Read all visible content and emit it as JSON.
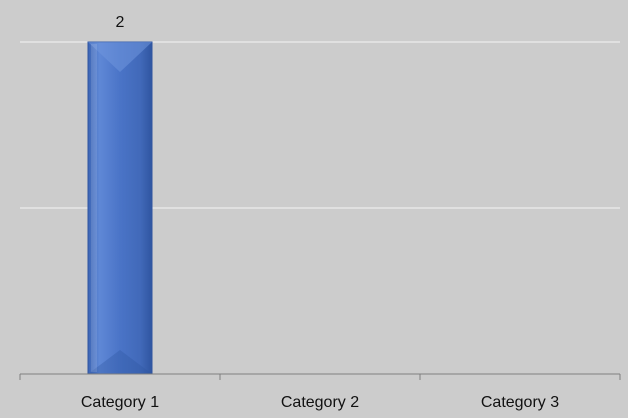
{
  "chart_data": {
    "type": "bar",
    "categories": [
      "Category 1",
      "Category 2",
      "Category 3"
    ],
    "values": [
      2,
      0,
      0
    ],
    "data_labels": [
      "2",
      "",
      ""
    ],
    "title": "",
    "xlabel": "",
    "ylabel": "",
    "ylim": [
      0,
      2
    ],
    "gridlines": [
      1,
      2
    ],
    "grid": true,
    "legend": "none",
    "colors": {
      "background": "#cccccc",
      "bar": "#4a74c7",
      "bar_light": "#6f95dd",
      "bar_dark": "#2f55a0",
      "gridline": "#e6e6e6",
      "axis": "#7f7f7f"
    }
  }
}
